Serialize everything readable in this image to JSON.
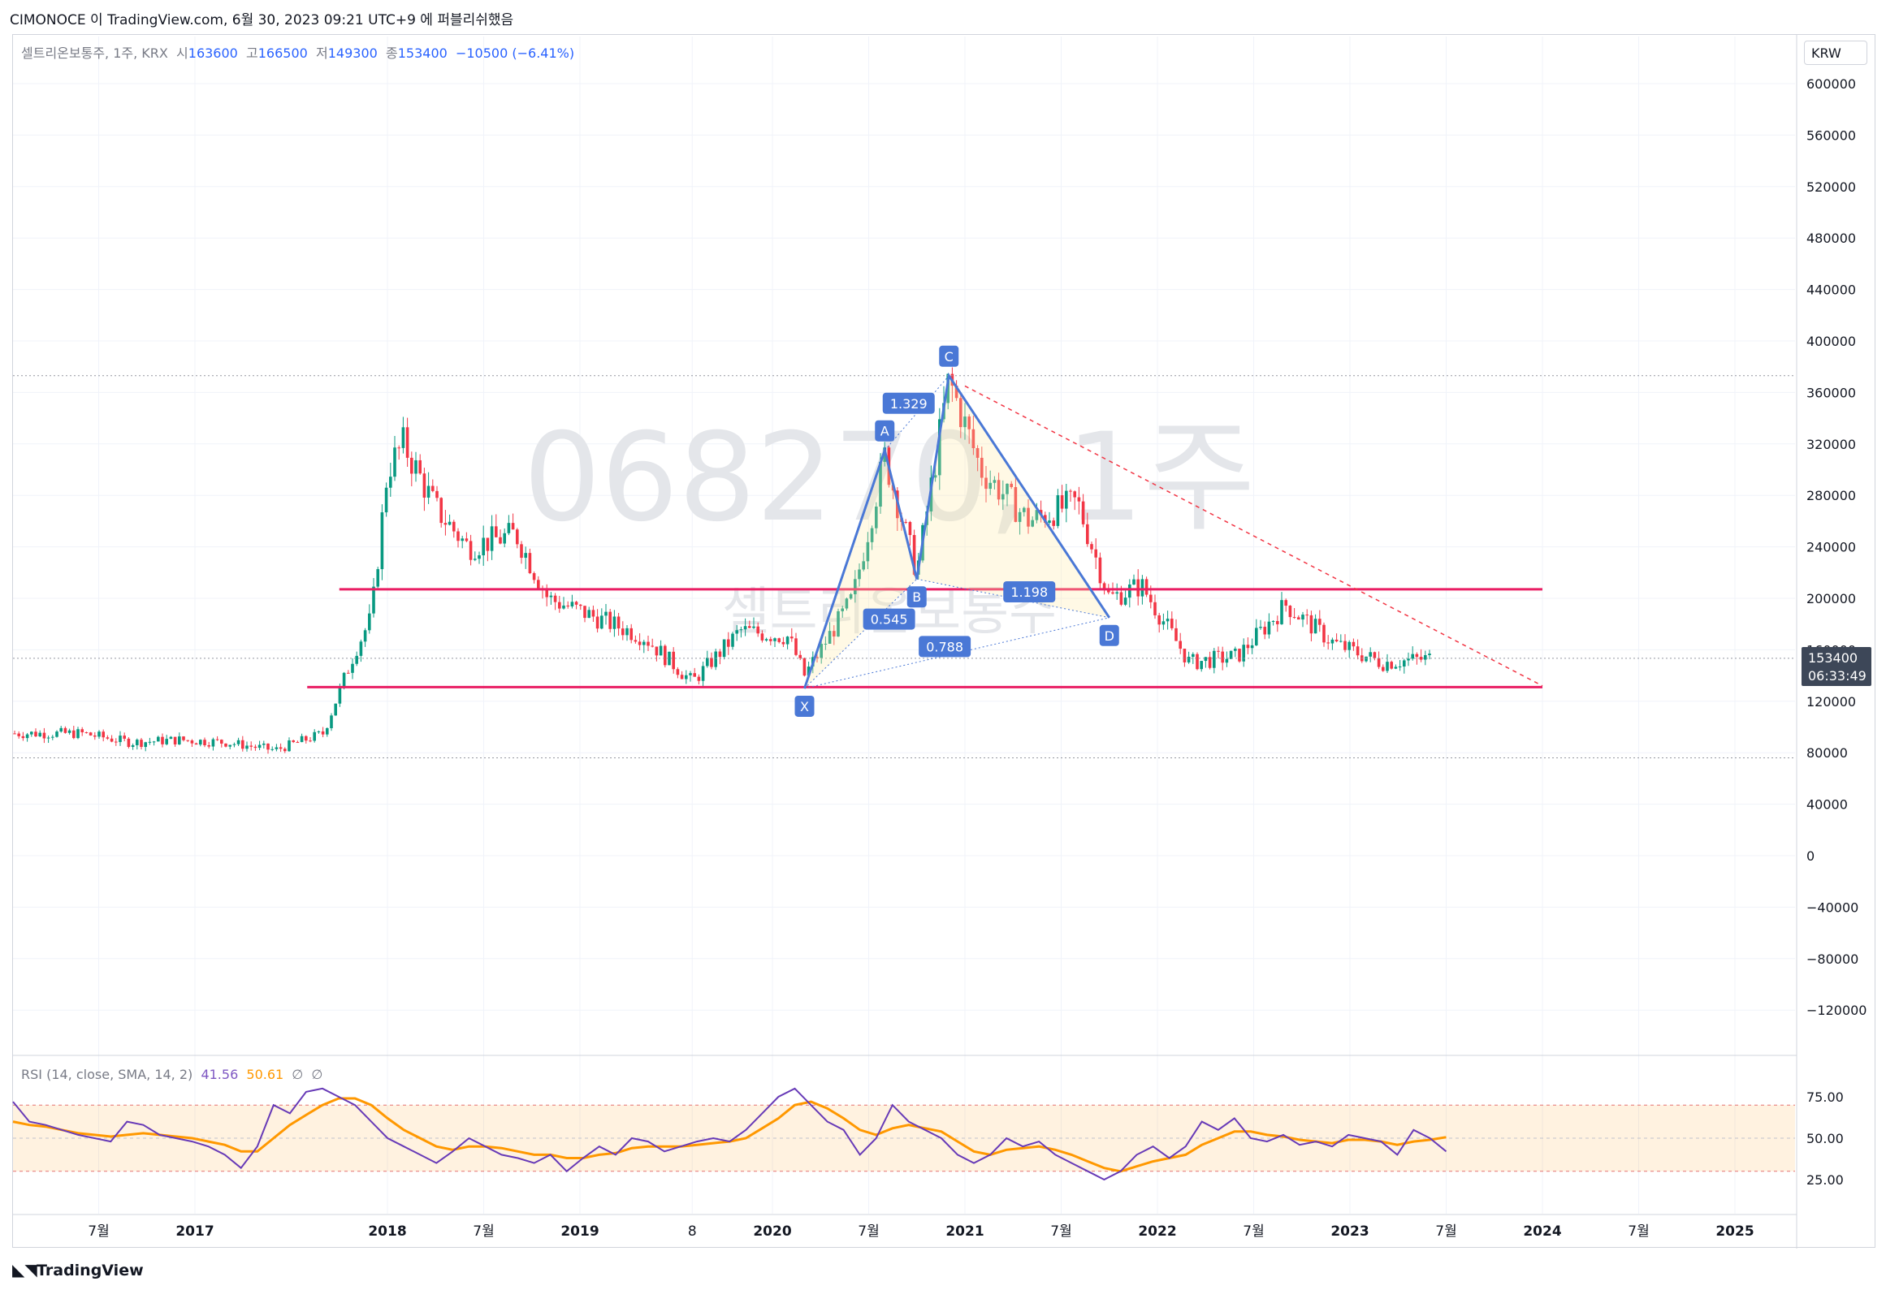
{
  "header": {
    "text": "CIMONOCE 이 TradingView.com, 6월 30, 2023 09:21 UTC+9 에 퍼블리쉬했음"
  },
  "legend": {
    "symbol": "셀트리온보통주, 1주, KRX",
    "o_label": "시",
    "o": "163600",
    "h_label": "고",
    "h": "166500",
    "l_label": "저",
    "l": "149300",
    "c_label": "종",
    "c": "153400",
    "change": "−10500 (−6.41%)"
  },
  "currency": "KRW",
  "price_tag": {
    "price": "153400",
    "timer": "06:33:49"
  },
  "watermark": {
    "symbol": "068270, 1주",
    "name": "셀트리온보통주"
  },
  "rsi_legend": {
    "label": "RSI (14, close, SMA, 14, 2)",
    "rsi": "41.56",
    "sma": "50.61",
    "x1": "∅",
    "x2": "∅"
  },
  "brand": {
    "name": "TradingView"
  },
  "chart_data": [
    {
      "type": "candlestick",
      "title": "",
      "price_axis": {
        "ticks": [
          600000,
          560000,
          520000,
          480000,
          440000,
          400000,
          360000,
          320000,
          280000,
          240000,
          200000,
          160000,
          120000,
          80000,
          40000,
          0,
          -40000,
          -80000,
          -120000
        ],
        "range": [
          -150000,
          630000
        ]
      },
      "time_axis": {
        "ticks": [
          "7월",
          "2017",
          "2018",
          "7월",
          "2019",
          "8",
          "2020",
          "7월",
          "2021",
          "7월",
          "2022",
          "7월",
          "2023",
          "7월",
          "2024",
          "7월",
          "2025"
        ]
      },
      "approx_weekly_close": [
        {
          "t": "2016-06",
          "v": 95000
        },
        {
          "t": "2016-09",
          "v": 88000
        },
        {
          "t": "2016-12",
          "v": 90000
        },
        {
          "t": "2017-03",
          "v": 88000
        },
        {
          "t": "2017-06",
          "v": 82000
        },
        {
          "t": "2017-09",
          "v": 95000
        },
        {
          "t": "2017-11",
          "v": 160000
        },
        {
          "t": "2017-12",
          "v": 185000
        },
        {
          "t": "2018-01",
          "v": 300000
        },
        {
          "t": "2018-02",
          "v": 320000
        },
        {
          "t": "2018-04",
          "v": 270000
        },
        {
          "t": "2018-06",
          "v": 240000
        },
        {
          "t": "2018-09",
          "v": 250000
        },
        {
          "t": "2018-11",
          "v": 200000
        },
        {
          "t": "2019-02",
          "v": 185000
        },
        {
          "t": "2019-05",
          "v": 170000
        },
        {
          "t": "2019-08",
          "v": 135000
        },
        {
          "t": "2019-11",
          "v": 175000
        },
        {
          "t": "2020-02",
          "v": 170000
        },
        {
          "t": "2020-03",
          "v": 140000
        },
        {
          "t": "2020-06",
          "v": 200000
        },
        {
          "t": "2020-08",
          "v": 310000
        },
        {
          "t": "2020-10",
          "v": 220000
        },
        {
          "t": "2020-12",
          "v": 370000
        },
        {
          "t": "2021-02",
          "v": 300000
        },
        {
          "t": "2021-05",
          "v": 260000
        },
        {
          "t": "2021-08",
          "v": 275000
        },
        {
          "t": "2021-10",
          "v": 200000
        },
        {
          "t": "2021-12",
          "v": 210000
        },
        {
          "t": "2022-03",
          "v": 150000
        },
        {
          "t": "2022-06",
          "v": 155000
        },
        {
          "t": "2022-09",
          "v": 195000
        },
        {
          "t": "2022-12",
          "v": 165000
        },
        {
          "t": "2023-03",
          "v": 150000
        },
        {
          "t": "2023-06",
          "v": 153400
        }
      ],
      "harmonic_pattern": {
        "points": [
          {
            "label": "X",
            "t": "2020-03",
            "v": 130000
          },
          {
            "label": "A",
            "t": "2020-08",
            "v": 315000
          },
          {
            "label": "B",
            "t": "2020-10",
            "v": 215000
          },
          {
            "label": "C",
            "t": "2020-12",
            "v": 373000
          },
          {
            "label": "D",
            "t": "2021-10",
            "v": 185000
          }
        ],
        "ratios": [
          "1.329",
          "0.545",
          "1.198",
          "0.788"
        ]
      },
      "horizontal_lines": [
        207000,
        131000
      ],
      "trend_line": {
        "from": {
          "t": "2021-01",
          "v": 365000
        },
        "to": {
          "t": "2024-01",
          "v": 132000
        }
      },
      "dotted_levels": [
        373000,
        76000
      ]
    },
    {
      "type": "line",
      "title": "",
      "y_ticks": [
        "75.00",
        "50.00",
        "25.00"
      ],
      "band": [
        30,
        70
      ],
      "series": [
        {
          "name": "RSI",
          "values": [
            72,
            60,
            58,
            55,
            52,
            50,
            48,
            60,
            58,
            52,
            50,
            48,
            45,
            40,
            32,
            45,
            70,
            65,
            78,
            80,
            75,
            70,
            60,
            50,
            45,
            40,
            35,
            42,
            50,
            45,
            40,
            38,
            35,
            40,
            30,
            38,
            45,
            40,
            50,
            48,
            42,
            45,
            48,
            50,
            48,
            55,
            65,
            75,
            80,
            70,
            60,
            55,
            40,
            50,
            70,
            60,
            55,
            50,
            40,
            35,
            40,
            50,
            45,
            48,
            40,
            35,
            30,
            25,
            30,
            40,
            45,
            38,
            45,
            60,
            55,
            62,
            50,
            48,
            52,
            46,
            48,
            45,
            52,
            50,
            48,
            40,
            55,
            50,
            42
          ]
        },
        {
          "name": "SMA",
          "values": [
            60,
            58,
            57,
            55,
            53,
            52,
            51,
            52,
            53,
            52,
            51,
            50,
            48,
            46,
            42,
            42,
            50,
            58,
            64,
            70,
            74,
            74,
            70,
            62,
            55,
            50,
            45,
            43,
            45,
            45,
            44,
            42,
            40,
            40,
            38,
            38,
            40,
            41,
            44,
            45,
            45,
            45,
            46,
            47,
            48,
            50,
            56,
            62,
            70,
            72,
            68,
            62,
            55,
            52,
            56,
            58,
            56,
            54,
            48,
            42,
            40,
            43,
            44,
            45,
            43,
            40,
            36,
            32,
            30,
            33,
            36,
            38,
            40,
            46,
            50,
            54,
            54,
            52,
            51,
            49,
            48,
            47,
            49,
            49,
            48,
            46,
            48,
            49,
            50.6
          ]
        }
      ]
    }
  ]
}
